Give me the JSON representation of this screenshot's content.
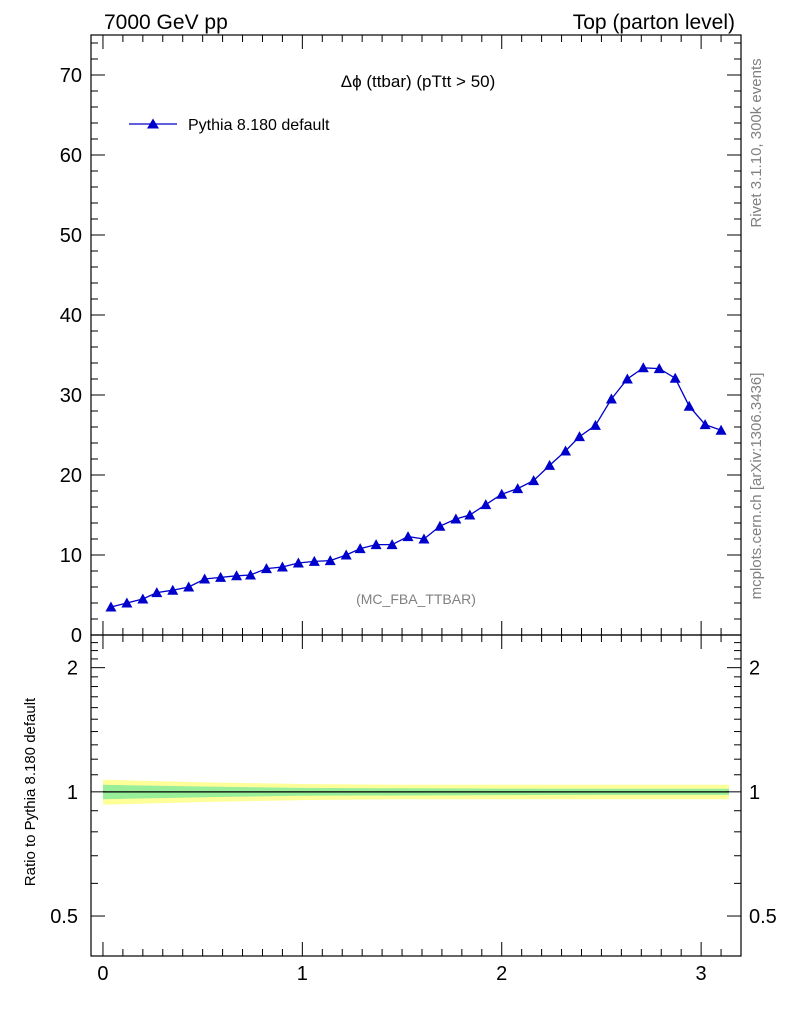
{
  "header": {
    "left": "7000 GeV pp",
    "right": "Top (parton level)"
  },
  "side_labels": {
    "rivet": "Rivet 3.1.10,  300k events",
    "mcplots": "mcplots.cern.ch [arXiv:1306.3436]"
  },
  "colors": {
    "series": "#0000cc",
    "band_inner": "#99ee99",
    "band_outer": "#ffff99"
  },
  "chart_data": [
    {
      "type": "line",
      "title": "Δϕ (ttbar) (pTtt > 50)",
      "watermark": "(MC_FBA_TTBAR)",
      "xlabel": "",
      "ylabel": "",
      "xlim": [
        -0.06,
        3.2
      ],
      "ylim": [
        0,
        75
      ],
      "yticks": [
        0,
        10,
        20,
        30,
        40,
        50,
        60,
        70
      ],
      "legend": "top-left",
      "series": [
        {
          "name": "Pythia 8.180 default",
          "marker": "triangle",
          "x": [
            0.04,
            0.12,
            0.2,
            0.27,
            0.35,
            0.43,
            0.51,
            0.59,
            0.67,
            0.74,
            0.82,
            0.9,
            0.98,
            1.06,
            1.14,
            1.22,
            1.29,
            1.37,
            1.45,
            1.53,
            1.61,
            1.69,
            1.77,
            1.84,
            1.92,
            2.0,
            2.08,
            2.16,
            2.24,
            2.32,
            2.39,
            2.47,
            2.55,
            2.63,
            2.71,
            2.79,
            2.87,
            2.94,
            3.02,
            3.1
          ],
          "values": [
            3.5,
            4.0,
            4.5,
            5.3,
            5.6,
            6.0,
            7.0,
            7.2,
            7.4,
            7.5,
            8.3,
            8.5,
            9.0,
            9.2,
            9.3,
            10.0,
            10.8,
            11.3,
            11.3,
            12.3,
            12.0,
            13.6,
            14.5,
            15.0,
            16.3,
            17.6,
            18.3,
            19.3,
            21.2,
            23.0,
            24.8,
            26.2,
            29.5,
            32.0,
            33.4,
            33.3,
            32.1,
            28.6,
            26.3,
            25.6
          ]
        }
      ]
    },
    {
      "type": "area",
      "title": "",
      "xlabel": "",
      "ylabel": "Ratio to Pythia 8.180 default",
      "xlim": [
        -0.06,
        3.2
      ],
      "ylim": [
        0.4,
        2.4
      ],
      "yticks": [
        0.5,
        1,
        2
      ],
      "ytick_labels": [
        "0.5",
        "1",
        "2"
      ],
      "xticks": [
        0,
        1,
        2,
        3
      ],
      "xtick_labels": [
        "0",
        "1",
        "2",
        "3"
      ],
      "bands": [
        {
          "name": "yellow",
          "x": [
            0,
            0.5,
            1,
            1.5,
            2,
            2.5,
            3,
            3.14
          ],
          "upper": [
            1.07,
            1.055,
            1.045,
            1.04,
            1.04,
            1.04,
            1.04,
            1.04
          ],
          "lower": [
            0.93,
            0.945,
            0.955,
            0.96,
            0.96,
            0.96,
            0.96,
            0.96
          ]
        },
        {
          "name": "green",
          "x": [
            0,
            0.5,
            1,
            1.5,
            2,
            2.5,
            3,
            3.14
          ],
          "upper": [
            1.04,
            1.03,
            1.022,
            1.02,
            1.018,
            1.017,
            1.017,
            1.017
          ],
          "lower": [
            0.96,
            0.97,
            0.978,
            0.98,
            0.982,
            0.983,
            0.983,
            0.983
          ]
        }
      ],
      "reference_line": 1
    }
  ]
}
